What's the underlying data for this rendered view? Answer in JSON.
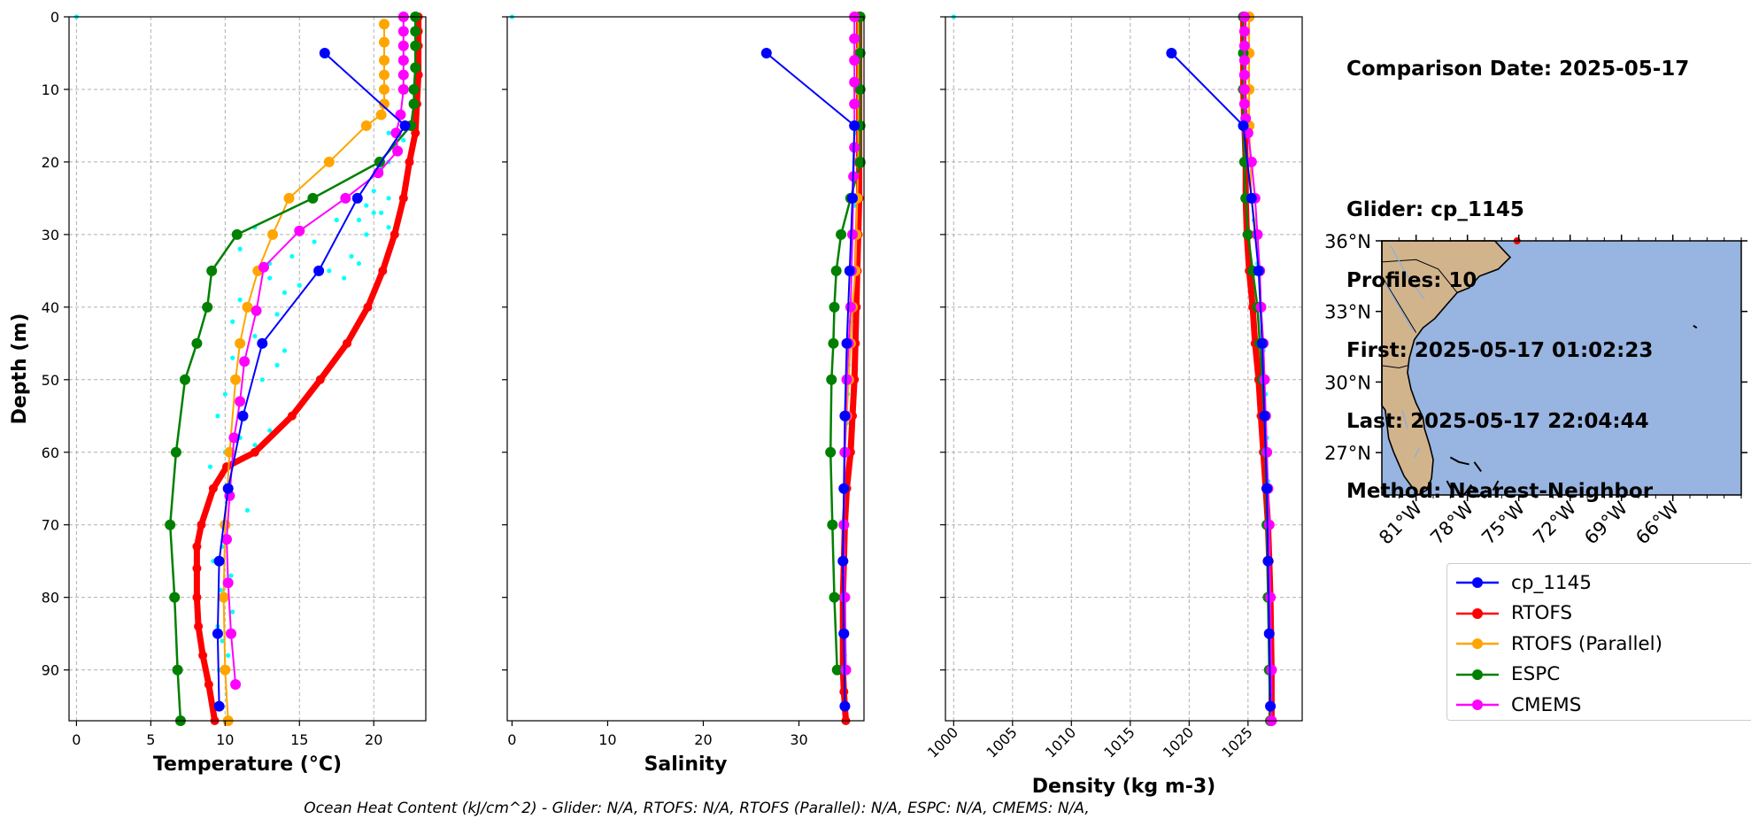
{
  "info": {
    "comparison_date": "Comparison Date: 2025-05-17",
    "glider": "Glider: cp_1145",
    "profiles": "Profiles: 10",
    "first": "First: 2025-05-17 01:02:23",
    "last": "Last: 2025-05-17 22:04:44",
    "method": "Method: Nearest-Neighbor"
  },
  "footer": "Ocean Heat Content (kJ/cm^2) - Glider: N/A,  RTOFS: N/A,  RTOFS (Parallel): N/A,  ESPC: N/A,  CMEMS: N/A,",
  "colors": {
    "cp_1145": "#0000ff",
    "rtofs": "#ff0000",
    "rtofs_parallel": "#ffa500",
    "espc": "#008000",
    "cmems": "#ff00ff",
    "raw": "#00ffff",
    "land": "#d2b48c",
    "ocean": "#98b4e0"
  },
  "legend": [
    {
      "key": "cp_1145",
      "label": "cp_1145"
    },
    {
      "key": "rtofs",
      "label": "RTOFS"
    },
    {
      "key": "rtofs_parallel",
      "label": "RTOFS (Parallel)"
    },
    {
      "key": "espc",
      "label": "ESPC"
    },
    {
      "key": "cmems",
      "label": "CMEMS"
    }
  ],
  "chart_data": [
    {
      "type": "line",
      "id": "temperature",
      "xlabel": "Temperature (°C)",
      "ylabel": "Depth (m)",
      "xlim": [
        -0.5,
        23.5
      ],
      "ylim": [
        97,
        0
      ],
      "xticks": [
        0,
        5,
        10,
        15,
        20
      ],
      "yticks": [
        0,
        10,
        20,
        30,
        40,
        50,
        60,
        70,
        80,
        90
      ],
      "grid": true,
      "series": [
        {
          "key": "rtofs",
          "name": "RTOFS",
          "x": [
            23.0,
            23.0,
            23.0,
            23.0,
            22.9,
            22.8,
            22.4,
            22.0,
            21.4,
            20.6,
            19.6,
            18.2,
            16.4,
            14.5,
            12.0,
            10.1,
            9.2,
            8.4,
            8.1,
            8.1,
            8.1,
            8.2,
            8.5,
            8.9,
            9.3
          ],
          "y": [
            0,
            2,
            4,
            8,
            12,
            16,
            20,
            25,
            30,
            35,
            40,
            45,
            50,
            55,
            60,
            62,
            65,
            70,
            73,
            76,
            80,
            84,
            88,
            92,
            97
          ]
        },
        {
          "key": "rtofs_parallel",
          "name": "RTOFS (Parallel)",
          "x": [
            20.7,
            20.7,
            20.7,
            20.7,
            20.7,
            20.7,
            20.5,
            19.5,
            17.0,
            14.3,
            13.2,
            12.2,
            11.5,
            11.0,
            10.7,
            10.3,
            10.0,
            9.9,
            10.0,
            10.2
          ],
          "y": [
            1,
            3.5,
            6,
            8,
            10,
            12,
            13.5,
            15,
            20,
            25,
            30,
            35,
            40,
            45,
            50,
            60,
            70,
            80,
            90,
            97
          ]
        },
        {
          "key": "espc",
          "name": "ESPC",
          "x": [
            22.8,
            22.8,
            22.8,
            22.8,
            22.7,
            22.7,
            22.5,
            20.4,
            15.9,
            10.8,
            9.1,
            8.8,
            8.1,
            7.3,
            6.7,
            6.3,
            6.6,
            6.8,
            7.0
          ],
          "y": [
            0,
            2,
            4,
            7,
            10,
            12,
            15,
            20,
            25,
            30,
            35,
            40,
            45,
            50,
            60,
            70,
            80,
            90,
            97
          ]
        },
        {
          "key": "cmems",
          "name": "CMEMS",
          "x": [
            22.0,
            22.0,
            22.0,
            22.0,
            22.0,
            22.0,
            21.8,
            21.5,
            21.6,
            20.3,
            18.1,
            15.0,
            12.6,
            12.1,
            11.3,
            11.0,
            10.6,
            10.3,
            10.1,
            10.2,
            10.4,
            10.7
          ],
          "y": [
            0,
            2,
            4,
            6,
            8,
            10,
            13.5,
            16,
            18.5,
            21.5,
            25,
            29.5,
            34.5,
            40.5,
            47.5,
            53,
            58,
            66,
            72,
            78,
            85,
            92
          ]
        },
        {
          "key": "cp_1145",
          "name": "cp_1145",
          "x": [
            16.7,
            22.1,
            18.9,
            16.3,
            12.5,
            11.2,
            10.2,
            9.6,
            9.5,
            9.6
          ],
          "y": [
            5,
            15,
            25,
            35,
            45,
            55,
            65,
            75,
            85,
            95
          ]
        }
      ],
      "raw": {
        "x": [
          21.0,
          22.0,
          21.5,
          21.0,
          20.5,
          20.0,
          21.0,
          19.5,
          20.0,
          19.0,
          20.5,
          21.0,
          19.5,
          17.5,
          16.0,
          12.0,
          14.5,
          13.0,
          11.0,
          18.5,
          17.0,
          18.0,
          19.0,
          15.0,
          14.0,
          13.0,
          11.0,
          10.5,
          13.5,
          12.0,
          14.0,
          13.5,
          12.5,
          10.5,
          10.0,
          9.5,
          13.0,
          12.0,
          11.0,
          10.0,
          9.0,
          9.5,
          10.5,
          11.5,
          9.8,
          9.2,
          10.4,
          9.7,
          10.5,
          9.5,
          9.8,
          10.2,
          9.6,
          0.0
        ],
        "y": [
          16,
          17,
          18,
          20,
          21,
          24,
          25,
          26,
          27,
          28,
          27,
          29,
          30,
          28,
          31,
          29,
          33,
          34,
          32,
          33,
          35,
          36,
          34,
          37,
          38,
          36,
          39,
          42,
          41,
          44,
          46,
          48,
          50,
          47,
          52,
          55,
          57,
          59,
          58,
          60,
          62,
          64,
          66,
          68,
          73,
          75,
          77,
          79,
          82,
          84,
          86,
          88,
          90,
          0
        ]
      }
    },
    {
      "type": "line",
      "id": "salinity",
      "xlabel": "Salinity",
      "ylabel": "",
      "xlim": [
        -0.5,
        36.8
      ],
      "ylim": [
        97,
        0
      ],
      "xticks": [
        0,
        10,
        20,
        30
      ],
      "grid": false,
      "series": [
        {
          "key": "rtofs",
          "name": "RTOFS",
          "x": [
            36.3,
            36.3,
            36.3,
            36.3,
            36.3,
            36.3,
            36.2,
            36.1,
            36.0,
            35.9,
            35.8,
            35.6,
            35.4,
            35.0,
            34.8,
            34.7,
            34.6,
            34.6,
            34.6,
            34.7,
            34.9
          ],
          "y": [
            0,
            5,
            10,
            15,
            20,
            25,
            30,
            35,
            40,
            45,
            50,
            55,
            60,
            65,
            70,
            75,
            80,
            85,
            90,
            93,
            97
          ]
        },
        {
          "key": "rtofs_parallel",
          "name": "RTOFS (Parallel)",
          "x": [
            36.2,
            36.2,
            36.2,
            36.2,
            36.2,
            36.1,
            36.0,
            35.9,
            35.6,
            35.4,
            35.2,
            35.0,
            34.8,
            34.7,
            34.8,
            34.9
          ],
          "y": [
            0,
            5,
            10,
            15,
            20,
            25,
            30,
            35,
            40,
            45,
            50,
            55,
            60,
            70,
            80,
            90
          ]
        },
        {
          "key": "espc",
          "name": "ESPC",
          "x": [
            36.4,
            36.4,
            36.4,
            36.4,
            36.4,
            36.4,
            35.4,
            34.4,
            33.9,
            33.7,
            33.6,
            33.4,
            33.3,
            33.5,
            33.7,
            34.0
          ],
          "y": [
            0,
            5,
            10,
            15,
            20,
            20.1,
            25,
            30,
            35,
            40,
            45,
            50,
            60,
            70,
            80,
            90
          ]
        },
        {
          "key": "cmems",
          "name": "CMEMS",
          "x": [
            35.8,
            35.8,
            35.8,
            35.8,
            35.8,
            35.8,
            35.8,
            35.7,
            35.6,
            35.5,
            35.4,
            35.2,
            35.0,
            34.9,
            34.8,
            34.7,
            34.8,
            34.9
          ],
          "y": [
            0,
            3,
            6,
            9,
            12,
            15,
            18,
            22,
            30,
            35,
            40,
            45,
            50,
            55,
            60,
            70,
            80,
            90
          ]
        },
        {
          "key": "cp_1145",
          "name": "cp_1145",
          "x": [
            26.6,
            35.8,
            35.6,
            35.3,
            35.0,
            34.8,
            34.7,
            34.6,
            34.7,
            34.8
          ],
          "y": [
            5,
            15,
            25,
            35,
            45,
            55,
            65,
            75,
            85,
            95
          ]
        }
      ],
      "raw": {
        "x": [
          35.9,
          35.8,
          35.8,
          35.6,
          35.6,
          35.4,
          35.4,
          35.3,
          35.2,
          35.1,
          35.0,
          35.0,
          34.9,
          34.8,
          34.8,
          34.7,
          34.7,
          34.8,
          0.0
        ],
        "y": [
          16,
          20,
          26,
          30,
          35,
          40,
          42,
          44,
          48,
          52,
          56,
          60,
          64,
          68,
          72,
          76,
          80,
          88,
          0
        ]
      }
    },
    {
      "type": "line",
      "id": "density",
      "xlabel": "Density (kg m-3)",
      "ylabel": "",
      "xlim": [
        999.3,
        1029.6
      ],
      "ylim": [
        97,
        0
      ],
      "xticks": [
        1000,
        1005,
        1010,
        1015,
        1020,
        1025
      ],
      "grid": true,
      "series": [
        {
          "key": "rtofs",
          "name": "RTOFS",
          "x": [
            1024.6,
            1024.6,
            1024.6,
            1024.7,
            1024.8,
            1024.8,
            1024.9,
            1025.1,
            1025.4,
            1025.6,
            1025.9,
            1026.1,
            1026.3,
            1026.5,
            1026.7,
            1026.8,
            1026.9,
            1027.0,
            1027.0
          ],
          "y": [
            0,
            5,
            10,
            15,
            20,
            25,
            30,
            35,
            40,
            45,
            50,
            55,
            60,
            65,
            70,
            75,
            80,
            90,
            97
          ]
        },
        {
          "key": "rtofs_parallel",
          "name": "RTOFS (Parallel)",
          "x": [
            1025.1,
            1025.1,
            1025.1,
            1025.1,
            1025.2,
            1025.3,
            1025.7,
            1026.0,
            1026.1,
            1026.3,
            1026.4,
            1026.5,
            1026.6,
            1026.7,
            1026.8,
            1026.9,
            1026.9
          ],
          "y": [
            0,
            5,
            10,
            15,
            20,
            25,
            30,
            35,
            40,
            45,
            50,
            55,
            60,
            70,
            80,
            90,
            97
          ]
        },
        {
          "key": "espc",
          "name": "ESPC",
          "x": [
            1024.6,
            1024.6,
            1024.6,
            1024.6,
            1024.7,
            1024.8,
            1025.0,
            1025.4,
            1025.8,
            1026.0,
            1026.2,
            1026.4,
            1026.5,
            1026.6,
            1026.7,
            1026.8,
            1026.9
          ],
          "y": [
            0,
            5,
            10,
            15,
            20,
            25,
            30,
            35,
            40,
            45,
            50,
            55,
            60,
            70,
            80,
            90,
            97
          ]
        },
        {
          "key": "cmems",
          "name": "CMEMS",
          "x": [
            1024.7,
            1024.7,
            1024.7,
            1024.7,
            1024.7,
            1024.7,
            1024.7,
            1024.8,
            1025.0,
            1025.3,
            1025.6,
            1025.8,
            1026.0,
            1026.1,
            1026.3,
            1026.4,
            1026.5,
            1026.6,
            1026.7,
            1026.8,
            1026.9,
            1027.0,
            1027.0
          ],
          "y": [
            0,
            2,
            4,
            6,
            8,
            10,
            12,
            14,
            16,
            20,
            25,
            30,
            35,
            40,
            45,
            50,
            55,
            60,
            65,
            70,
            80,
            90,
            97
          ]
        },
        {
          "key": "cp_1145",
          "name": "cp_1145",
          "x": [
            1018.5,
            1024.6,
            1025.3,
            1025.9,
            1026.2,
            1026.4,
            1026.6,
            1026.7,
            1026.8,
            1026.9
          ],
          "y": [
            5,
            15,
            25,
            35,
            45,
            55,
            65,
            75,
            85,
            95
          ]
        }
      ],
      "raw": {
        "x": [
          1024.8,
          1025.1,
          1025.5,
          1025.8,
          1026.1,
          1026.3,
          1026.5,
          1026.6,
          1026.7,
          1026.8,
          1026.9,
          1000.0
        ],
        "y": [
          16,
          22,
          28,
          34,
          40,
          46,
          52,
          58,
          64,
          72,
          84,
          0
        ]
      }
    },
    {
      "type": "map",
      "id": "map",
      "lon_range": [
        -83,
        -62
      ],
      "lat_range": [
        25.2,
        36
      ],
      "xticks": [
        "81°W",
        "78°W",
        "75°W",
        "72°W",
        "69°W",
        "66°W"
      ],
      "yticks": [
        "36°N",
        "33°N",
        "30°N",
        "27°N"
      ],
      "xtick_values": [
        -81,
        -78,
        -75,
        -72,
        -69,
        -66
      ],
      "ytick_values": [
        36,
        33,
        30,
        27
      ],
      "marker": {
        "lon": -75.1,
        "lat": 36.0
      }
    }
  ]
}
